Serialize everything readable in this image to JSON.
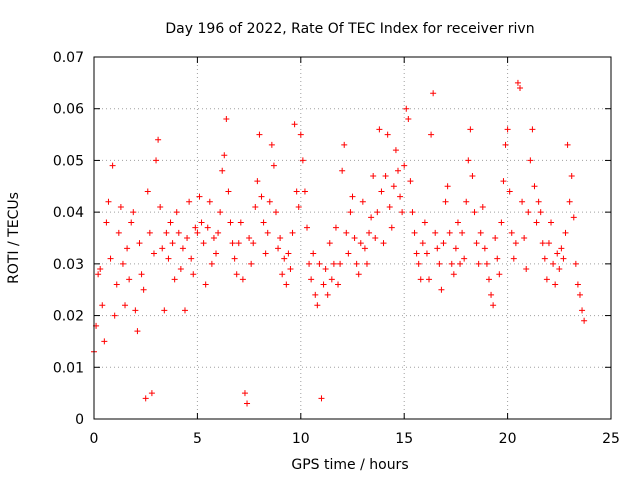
{
  "chart_data": {
    "type": "scatter",
    "title": "Day 196 of 2022, Rate Of TEC Index for receiver rivn",
    "xlabel": "GPS time / hours",
    "ylabel": "ROTI / TECUs",
    "xlim": [
      0,
      25
    ],
    "ylim": [
      0,
      0.07
    ],
    "xticks": [
      "0",
      "5",
      "10",
      "15",
      "20",
      "25"
    ],
    "yticks": [
      "0",
      "0.01",
      "0.02",
      "0.03",
      "0.04",
      "0.05",
      "0.06",
      "0.07"
    ],
    "xtick_values": [
      0,
      5,
      10,
      15,
      20,
      25
    ],
    "ytick_values": [
      0,
      0.01,
      0.02,
      0.03,
      0.04,
      0.05,
      0.06,
      0.07
    ],
    "grid": true,
    "marker": "+",
    "color": "#ff0000",
    "series": [
      {
        "points": [
          [
            0.0,
            0.013
          ],
          [
            0.1,
            0.018
          ],
          [
            0.2,
            0.028
          ],
          [
            0.3,
            0.029
          ],
          [
            0.4,
            0.022
          ],
          [
            0.5,
            0.015
          ],
          [
            0.6,
            0.038
          ],
          [
            0.7,
            0.042
          ],
          [
            0.8,
            0.031
          ],
          [
            0.9,
            0.049
          ],
          [
            1.0,
            0.02
          ],
          [
            1.1,
            0.026
          ],
          [
            1.2,
            0.036
          ],
          [
            1.3,
            0.041
          ],
          [
            1.4,
            0.03
          ],
          [
            1.5,
            0.022
          ],
          [
            1.6,
            0.033
          ],
          [
            1.7,
            0.027
          ],
          [
            1.8,
            0.038
          ],
          [
            1.9,
            0.04
          ],
          [
            2.0,
            0.021
          ],
          [
            2.1,
            0.017
          ],
          [
            2.2,
            0.034
          ],
          [
            2.3,
            0.028
          ],
          [
            2.4,
            0.025
          ],
          [
            2.5,
            0.004
          ],
          [
            2.6,
            0.044
          ],
          [
            2.7,
            0.036
          ],
          [
            2.8,
            0.005
          ],
          [
            2.9,
            0.032
          ],
          [
            3.0,
            0.05
          ],
          [
            3.1,
            0.054
          ],
          [
            3.2,
            0.041
          ],
          [
            3.3,
            0.033
          ],
          [
            3.4,
            0.021
          ],
          [
            3.5,
            0.036
          ],
          [
            3.6,
            0.031
          ],
          [
            3.7,
            0.038
          ],
          [
            3.8,
            0.034
          ],
          [
            3.9,
            0.027
          ],
          [
            4.0,
            0.04
          ],
          [
            4.1,
            0.036
          ],
          [
            4.2,
            0.029
          ],
          [
            4.3,
            0.033
          ],
          [
            4.4,
            0.021
          ],
          [
            4.5,
            0.035
          ],
          [
            4.6,
            0.042
          ],
          [
            4.7,
            0.031
          ],
          [
            4.8,
            0.028
          ],
          [
            4.9,
            0.037
          ],
          [
            5.0,
            0.036
          ],
          [
            5.1,
            0.043
          ],
          [
            5.2,
            0.038
          ],
          [
            5.3,
            0.034
          ],
          [
            5.4,
            0.026
          ],
          [
            5.5,
            0.037
          ],
          [
            5.6,
            0.042
          ],
          [
            5.7,
            0.03
          ],
          [
            5.8,
            0.035
          ],
          [
            5.9,
            0.032
          ],
          [
            6.0,
            0.036
          ],
          [
            6.1,
            0.04
          ],
          [
            6.2,
            0.048
          ],
          [
            6.3,
            0.051
          ],
          [
            6.4,
            0.058
          ],
          [
            6.5,
            0.044
          ],
          [
            6.6,
            0.038
          ],
          [
            6.7,
            0.034
          ],
          [
            6.8,
            0.031
          ],
          [
            6.9,
            0.028
          ],
          [
            7.0,
            0.034
          ],
          [
            7.1,
            0.038
          ],
          [
            7.2,
            0.027
          ],
          [
            7.3,
            0.005
          ],
          [
            7.4,
            0.003
          ],
          [
            7.5,
            0.035
          ],
          [
            7.6,
            0.03
          ],
          [
            7.7,
            0.034
          ],
          [
            7.8,
            0.041
          ],
          [
            7.9,
            0.046
          ],
          [
            8.0,
            0.055
          ],
          [
            8.1,
            0.043
          ],
          [
            8.2,
            0.038
          ],
          [
            8.3,
            0.032
          ],
          [
            8.4,
            0.036
          ],
          [
            8.5,
            0.042
          ],
          [
            8.6,
            0.053
          ],
          [
            8.7,
            0.049
          ],
          [
            8.8,
            0.04
          ],
          [
            8.9,
            0.033
          ],
          [
            9.0,
            0.035
          ],
          [
            9.1,
            0.028
          ],
          [
            9.2,
            0.031
          ],
          [
            9.3,
            0.026
          ],
          [
            9.4,
            0.032
          ],
          [
            9.5,
            0.029
          ],
          [
            9.6,
            0.036
          ],
          [
            9.7,
            0.057
          ],
          [
            9.8,
            0.044
          ],
          [
            9.9,
            0.041
          ],
          [
            10.0,
            0.055
          ],
          [
            10.1,
            0.05
          ],
          [
            10.2,
            0.044
          ],
          [
            10.3,
            0.037
          ],
          [
            10.4,
            0.03
          ],
          [
            10.5,
            0.027
          ],
          [
            10.6,
            0.032
          ],
          [
            10.7,
            0.024
          ],
          [
            10.8,
            0.022
          ],
          [
            10.9,
            0.03
          ],
          [
            11.0,
            0.004
          ],
          [
            11.1,
            0.026
          ],
          [
            11.2,
            0.029
          ],
          [
            11.3,
            0.024
          ],
          [
            11.4,
            0.034
          ],
          [
            11.5,
            0.027
          ],
          [
            11.6,
            0.03
          ],
          [
            11.7,
            0.037
          ],
          [
            11.8,
            0.026
          ],
          [
            11.9,
            0.03
          ],
          [
            12.0,
            0.048
          ],
          [
            12.1,
            0.053
          ],
          [
            12.2,
            0.036
          ],
          [
            12.3,
            0.032
          ],
          [
            12.4,
            0.04
          ],
          [
            12.5,
            0.043
          ],
          [
            12.6,
            0.035
          ],
          [
            12.7,
            0.03
          ],
          [
            12.8,
            0.028
          ],
          [
            12.9,
            0.034
          ],
          [
            13.0,
            0.042
          ],
          [
            13.1,
            0.033
          ],
          [
            13.2,
            0.03
          ],
          [
            13.3,
            0.036
          ],
          [
            13.4,
            0.039
          ],
          [
            13.5,
            0.047
          ],
          [
            13.6,
            0.035
          ],
          [
            13.7,
            0.04
          ],
          [
            13.8,
            0.056
          ],
          [
            13.9,
            0.044
          ],
          [
            14.0,
            0.034
          ],
          [
            14.1,
            0.047
          ],
          [
            14.2,
            0.055
          ],
          [
            14.3,
            0.041
          ],
          [
            14.4,
            0.037
          ],
          [
            14.5,
            0.045
          ],
          [
            14.6,
            0.052
          ],
          [
            14.7,
            0.048
          ],
          [
            14.8,
            0.043
          ],
          [
            14.9,
            0.04
          ],
          [
            15.0,
            0.049
          ],
          [
            15.1,
            0.06
          ],
          [
            15.2,
            0.058
          ],
          [
            15.3,
            0.046
          ],
          [
            15.4,
            0.04
          ],
          [
            15.5,
            0.036
          ],
          [
            15.6,
            0.032
          ],
          [
            15.7,
            0.03
          ],
          [
            15.8,
            0.027
          ],
          [
            15.9,
            0.034
          ],
          [
            16.0,
            0.038
          ],
          [
            16.1,
            0.032
          ],
          [
            16.2,
            0.027
          ],
          [
            16.3,
            0.055
          ],
          [
            16.4,
            0.063
          ],
          [
            16.5,
            0.036
          ],
          [
            16.6,
            0.033
          ],
          [
            16.7,
            0.03
          ],
          [
            16.8,
            0.025
          ],
          [
            16.9,
            0.034
          ],
          [
            17.0,
            0.042
          ],
          [
            17.1,
            0.045
          ],
          [
            17.2,
            0.036
          ],
          [
            17.3,
            0.03
          ],
          [
            17.4,
            0.028
          ],
          [
            17.5,
            0.033
          ],
          [
            17.6,
            0.038
          ],
          [
            17.7,
            0.03
          ],
          [
            17.8,
            0.036
          ],
          [
            17.9,
            0.031
          ],
          [
            18.0,
            0.042
          ],
          [
            18.1,
            0.05
          ],
          [
            18.2,
            0.056
          ],
          [
            18.3,
            0.047
          ],
          [
            18.4,
            0.04
          ],
          [
            18.5,
            0.034
          ],
          [
            18.6,
            0.03
          ],
          [
            18.7,
            0.036
          ],
          [
            18.8,
            0.041
          ],
          [
            18.9,
            0.033
          ],
          [
            19.0,
            0.03
          ],
          [
            19.1,
            0.027
          ],
          [
            19.2,
            0.024
          ],
          [
            19.3,
            0.022
          ],
          [
            19.4,
            0.035
          ],
          [
            19.5,
            0.031
          ],
          [
            19.6,
            0.028
          ],
          [
            19.7,
            0.038
          ],
          [
            19.8,
            0.046
          ],
          [
            19.9,
            0.053
          ],
          [
            20.0,
            0.056
          ],
          [
            20.1,
            0.044
          ],
          [
            20.2,
            0.036
          ],
          [
            20.3,
            0.031
          ],
          [
            20.4,
            0.034
          ],
          [
            20.5,
            0.065
          ],
          [
            20.6,
            0.064
          ],
          [
            20.7,
            0.042
          ],
          [
            20.8,
            0.035
          ],
          [
            20.9,
            0.029
          ],
          [
            21.0,
            0.04
          ],
          [
            21.1,
            0.05
          ],
          [
            21.2,
            0.056
          ],
          [
            21.3,
            0.045
          ],
          [
            21.4,
            0.038
          ],
          [
            21.5,
            0.042
          ],
          [
            21.6,
            0.04
          ],
          [
            21.7,
            0.034
          ],
          [
            21.8,
            0.031
          ],
          [
            21.9,
            0.027
          ],
          [
            22.0,
            0.034
          ],
          [
            22.1,
            0.038
          ],
          [
            22.2,
            0.03
          ],
          [
            22.3,
            0.026
          ],
          [
            22.4,
            0.032
          ],
          [
            22.5,
            0.029
          ],
          [
            22.6,
            0.033
          ],
          [
            22.7,
            0.031
          ],
          [
            22.8,
            0.036
          ],
          [
            22.9,
            0.053
          ],
          [
            23.0,
            0.042
          ],
          [
            23.1,
            0.047
          ],
          [
            23.2,
            0.039
          ],
          [
            23.3,
            0.03
          ],
          [
            23.4,
            0.026
          ],
          [
            23.5,
            0.024
          ],
          [
            23.6,
            0.021
          ],
          [
            23.7,
            0.019
          ]
        ]
      }
    ]
  }
}
